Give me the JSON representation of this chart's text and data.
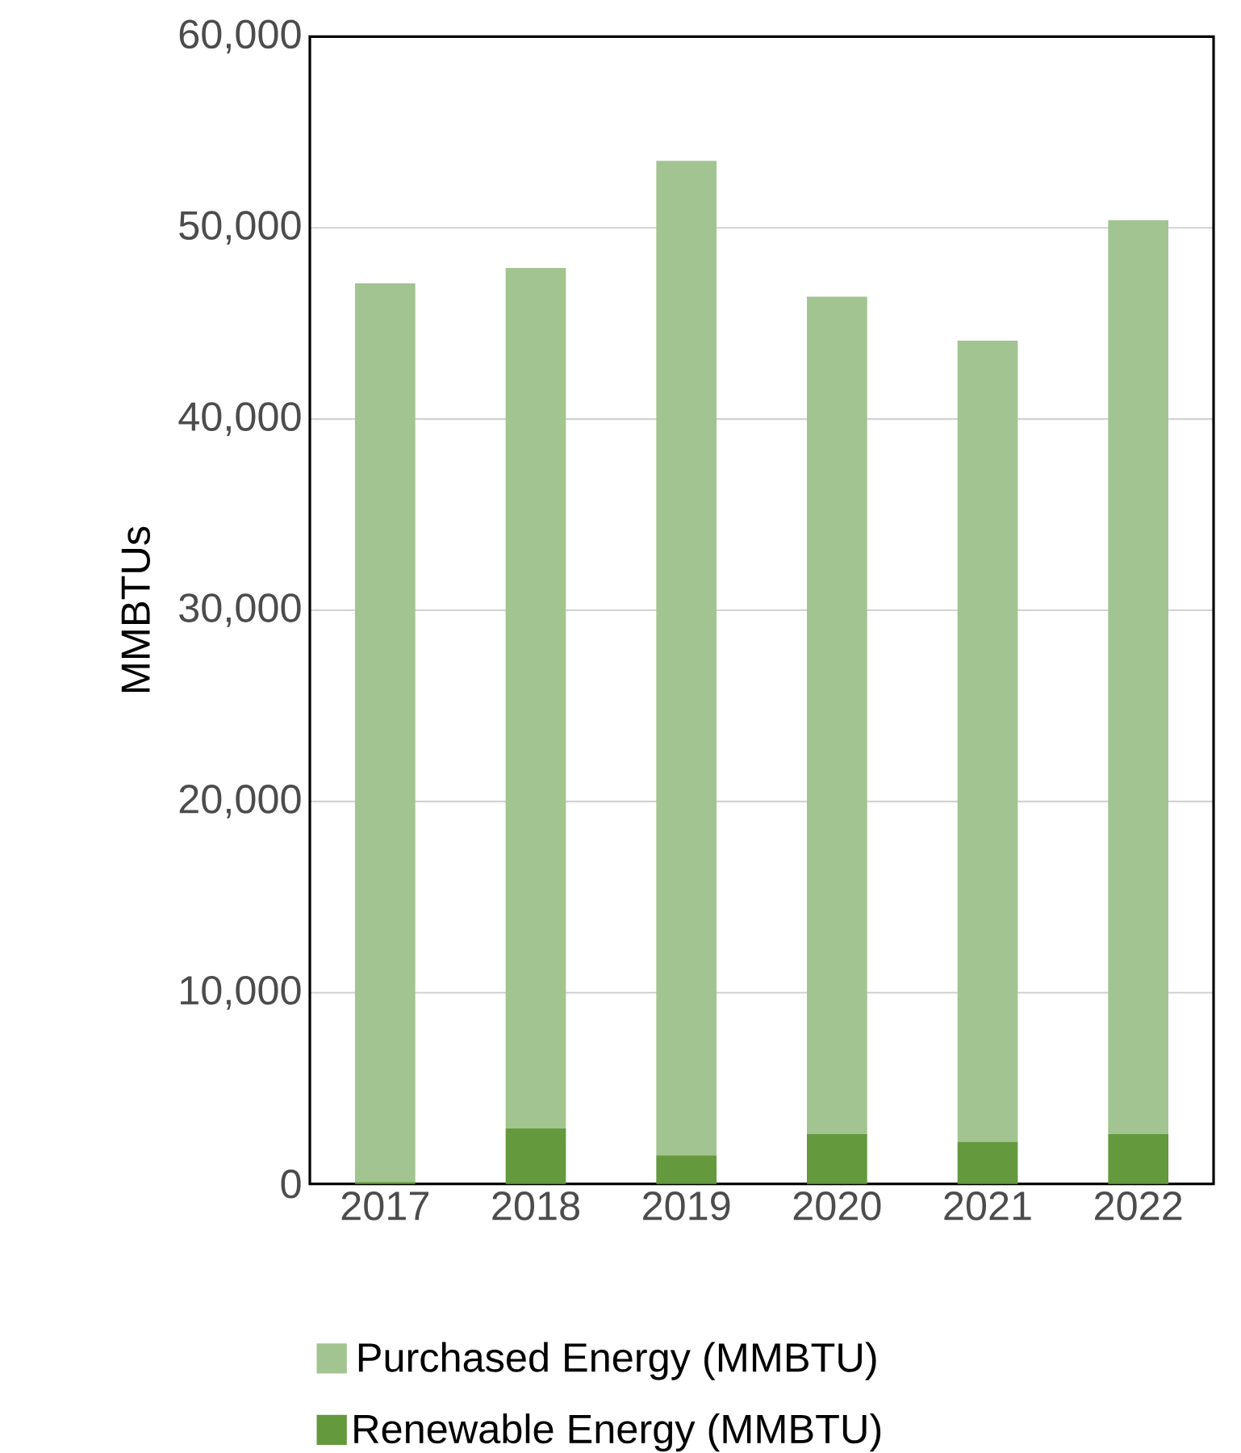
{
  "chart_data": {
    "type": "bar",
    "stacked": true,
    "ylabel": "MMBTUs",
    "categories": [
      "2017",
      "2018",
      "2019",
      "2020",
      "2021",
      "2022"
    ],
    "series": [
      {
        "name": "Renewable Energy (MMBTU)",
        "color": "#64993e",
        "values": [
          100,
          2900,
          1500,
          2600,
          2200,
          2600
        ]
      },
      {
        "name": "Purchased Energy (MMBTU)",
        "color": "#a2c490",
        "values": [
          47000,
          45000,
          52000,
          43800,
          41900,
          47800
        ]
      }
    ],
    "ylim": [
      0,
      60000
    ],
    "yticks": [
      0,
      {
        "value": 10000,
        "label": "10,000"
      },
      {
        "value": 20000,
        "label": "20,000"
      },
      {
        "value": 30000,
        "label": "30,000"
      },
      {
        "value": 40000,
        "label": "40,000"
      },
      {
        "value": 50000,
        "label": "50,000"
      },
      {
        "value": 60000,
        "label": "60,000"
      }
    ],
    "grid": "y",
    "legend": "bottom"
  }
}
